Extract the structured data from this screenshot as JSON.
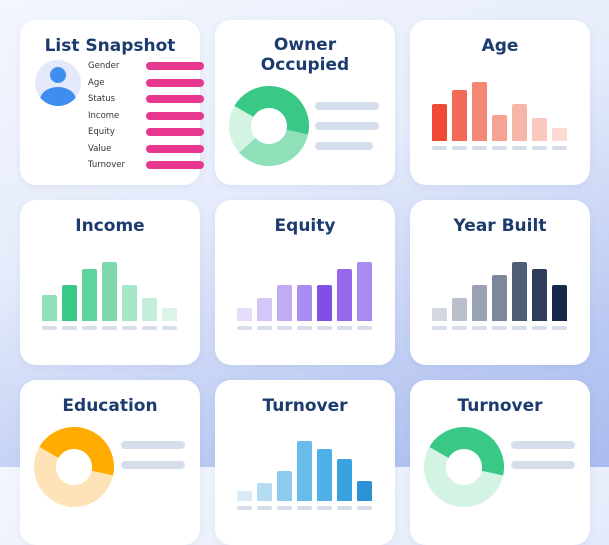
{
  "cards": {
    "snapshot": {
      "title": "List Snapshot",
      "icon": "user-avatar-icon",
      "bar_color": "#e8378f",
      "rows": [
        "Gender",
        "Age",
        "Status",
        "Income",
        "Equity",
        "Value",
        "Turnover"
      ]
    },
    "owner": {
      "title": "Owner Occupied",
      "slices": [
        0.45,
        0.35,
        0.2
      ],
      "colors": [
        "#3ac887",
        "#8fe0b8",
        "#d3f3e3"
      ]
    },
    "age": {
      "title": "Age",
      "levels": [
        37,
        51,
        59,
        26,
        37,
        23,
        13
      ],
      "colors": [
        "#f04a35",
        "#f26a55",
        "#f48876",
        "#f6a394",
        "#f8b6aa",
        "#fac8bf",
        "#fcd9d3"
      ]
    },
    "income": {
      "title": "Income",
      "levels": [
        26,
        36,
        52,
        59,
        36,
        23,
        13
      ],
      "colors": [
        "#8fe0b8",
        "#3ac887",
        "#5fd29e",
        "#7ed9ad",
        "#a6e6c7",
        "#c4eedb",
        "#dcf5e9"
      ]
    },
    "equity": {
      "title": "Equity",
      "levels": [
        13,
        23,
        36,
        36,
        36,
        52,
        59
      ],
      "colors": [
        "#e6def9",
        "#d4c6f6",
        "#c1acf3",
        "#a98cef",
        "#7f4fe6",
        "#9569ea",
        "#a98cef"
      ]
    },
    "year_built": {
      "title": "Year Built",
      "levels": [
        13,
        23,
        36,
        46,
        59,
        52,
        36
      ],
      "colors": [
        "#d3d7df",
        "#b9bfcb",
        "#9aa3b3",
        "#7c879b",
        "#4f5d77",
        "#2e3d5c",
        "#18284a"
      ]
    },
    "education": {
      "title": "Education",
      "colors": [
        "#ffab00",
        "#ffe3b8"
      ]
    },
    "turnover_bars": {
      "title": "Turnover",
      "levels": [
        10,
        18,
        30,
        60,
        52,
        42,
        20
      ],
      "colors": [
        "#d7ecf8",
        "#b4ddf3",
        "#8ccbee",
        "#67bce9",
        "#4fb0e5",
        "#3aa2df",
        "#2b92d4"
      ]
    },
    "turnover_donut": {
      "title": "Turnover",
      "colors": [
        "#3ac887",
        "#d3f3e3"
      ]
    }
  }
}
